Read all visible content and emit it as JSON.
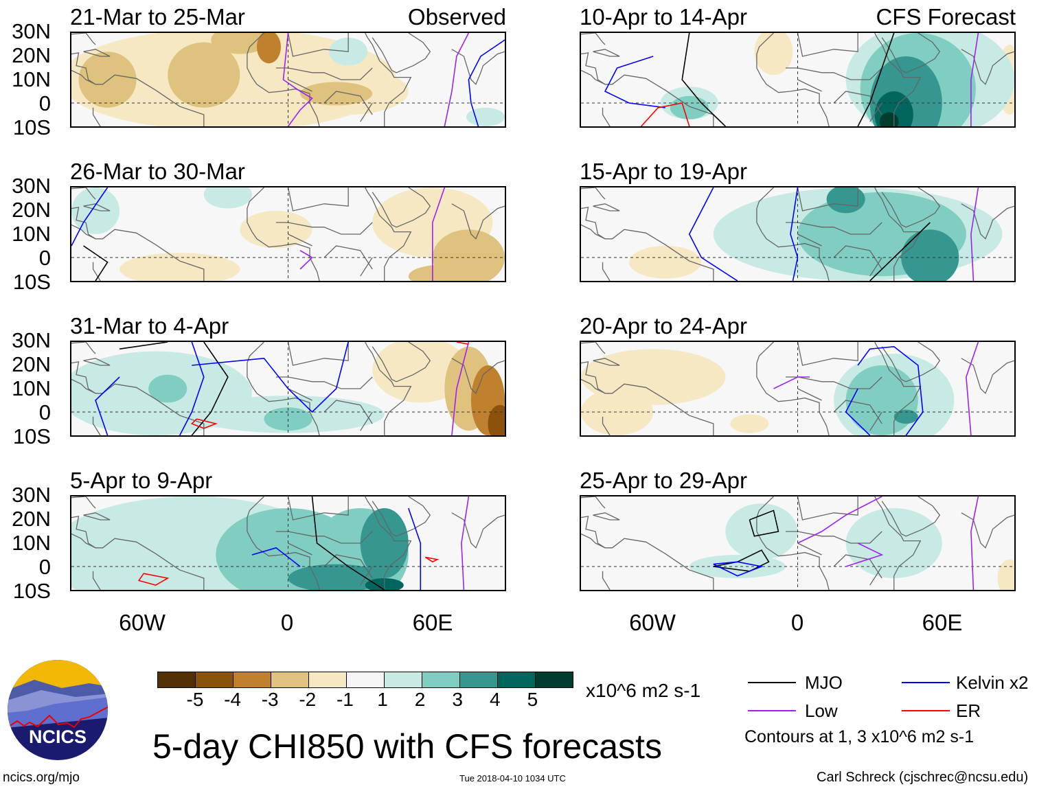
{
  "panels": [
    {
      "title": "21-Mar to 25-Mar",
      "tag": "Observed"
    },
    {
      "title": "10-Apr to 14-Apr",
      "tag": "CFS Forecast"
    },
    {
      "title": "26-Mar to 30-Mar"
    },
    {
      "title": "15-Apr to 19-Apr"
    },
    {
      "title": "31-Mar to 4-Apr"
    },
    {
      "title": "20-Apr to 24-Apr"
    },
    {
      "title": "5-Apr to 9-Apr"
    },
    {
      "title": "25-Apr to 29-Apr"
    }
  ],
  "lat_labels": [
    "30N",
    "20N",
    "10N",
    "0",
    "10S"
  ],
  "lon_labels": [
    "60W",
    "0",
    "60E"
  ],
  "colorbar": {
    "colors": [
      "#543005",
      "#8c510a",
      "#bf812d",
      "#dfc27d",
      "#f6e8c3",
      "#f5f5f5",
      "#c7eae5",
      "#80cdc1",
      "#35978f",
      "#01665e",
      "#003c30"
    ],
    "labels": [
      "-5",
      "-4",
      "-3",
      "-2",
      "-1",
      "1",
      "2",
      "3",
      "4",
      "5"
    ],
    "units": "x10^6 m2 s-1"
  },
  "legend": {
    "items": [
      {
        "label": "MJO",
        "color": "#000000"
      },
      {
        "label": "Kelvin x2",
        "color": "#0000ff"
      },
      {
        "label": "Low",
        "color": "#a020f0"
      },
      {
        "label": "ER",
        "color": "#ff0000"
      }
    ],
    "note": "Contours at 1, 3 x10^6 m2 s-1"
  },
  "title": "5-day CHI850 with CFS forecasts",
  "logo_text": "NCICS",
  "url": "ncics.org/mjo",
  "timestamp": "Tue 2018-04-10 1034 UTC",
  "credit": "Carl Schreck (cjschrec@ncsu.edu)"
}
